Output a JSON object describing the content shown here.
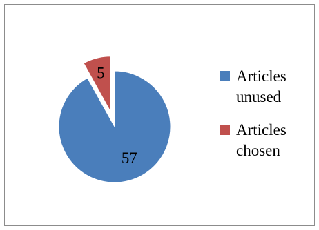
{
  "chart_data": {
    "type": "pie",
    "title": "",
    "categories": [
      "Articles\nunused",
      "Articles\nchosen"
    ],
    "values": [
      57,
      5
    ],
    "data_labels": [
      "57",
      "5"
    ],
    "colors": [
      "#4a7ebb",
      "#c0504d"
    ],
    "exploded": [
      false,
      true
    ],
    "legend_position": "right",
    "legend": [
      {
        "label": " Articles\nunused",
        "color": "#4a7ebb"
      },
      {
        "label": "Articles\nchosen",
        "color": "#c0504d"
      }
    ]
  }
}
